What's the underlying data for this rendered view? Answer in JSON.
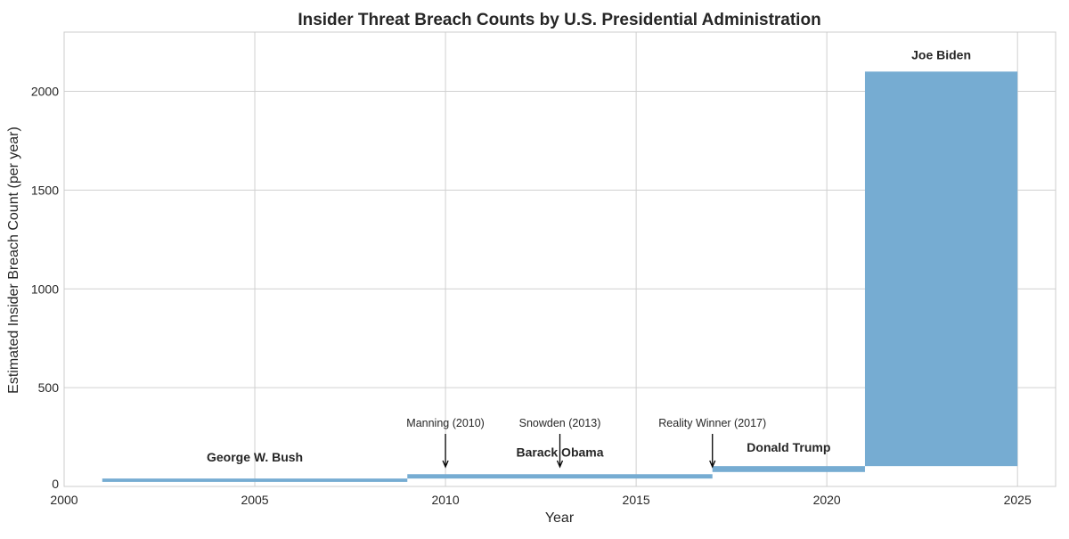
{
  "chart_data": {
    "type": "bar",
    "title": "Insider Threat Breach Counts by U.S. Presidential Administration",
    "xlabel": "Year",
    "ylabel": "Estimated Insider Breach Count (per year)",
    "xlim": [
      2000,
      2026
    ],
    "ylim": [
      0,
      2300
    ],
    "xticks": [
      2000,
      2005,
      2010,
      2015,
      2020,
      2025
    ],
    "yticks": [
      0,
      500,
      1000,
      1500,
      2000
    ],
    "grid": true,
    "bar_color": "#76acd2",
    "bars": [
      {
        "label": "George W. Bush",
        "start": 2001,
        "end": 2009,
        "bottom": 23,
        "top": 40
      },
      {
        "label": "Barack Obama",
        "start": 2009,
        "end": 2017,
        "bottom": 40,
        "top": 62
      },
      {
        "label": "Donald Trump",
        "start": 2017,
        "end": 2021,
        "bottom": 73,
        "top": 103
      },
      {
        "label": "Joe Biden",
        "start": 2021,
        "end": 2025,
        "bottom": 103,
        "top": 2100
      }
    ],
    "annotations": [
      {
        "text": "Manning (2010)",
        "x": 2010
      },
      {
        "text": "Snowden (2013)",
        "x": 2013
      },
      {
        "text": "Reality Winner (2017)",
        "x": 2017
      }
    ]
  }
}
